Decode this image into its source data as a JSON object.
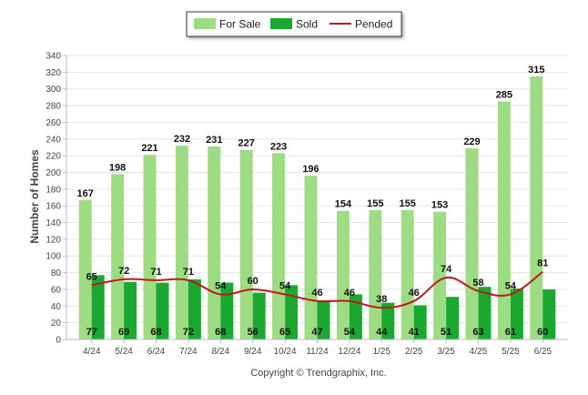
{
  "colors": {
    "for_sale": "#9edc83",
    "sold": "#1aa830",
    "pended": "#c21818",
    "grid": "#e6e6e6",
    "axis": "#bbbbbb"
  },
  "chart_data": {
    "type": "bar",
    "categories": [
      "4/24",
      "5/24",
      "6/24",
      "7/24",
      "8/24",
      "9/24",
      "10/24",
      "11/24",
      "12/24",
      "1/25",
      "2/25",
      "3/25",
      "4/25",
      "5/25",
      "6/25"
    ],
    "series": [
      {
        "name": "For Sale",
        "kind": "bar",
        "values": [
          167,
          198,
          221,
          232,
          231,
          227,
          223,
          196,
          154,
          155,
          155,
          153,
          229,
          285,
          315
        ]
      },
      {
        "name": "Sold",
        "kind": "bar",
        "values": [
          77,
          69,
          68,
          72,
          68,
          56,
          65,
          47,
          54,
          44,
          41,
          51,
          63,
          61,
          60
        ]
      },
      {
        "name": "Pended",
        "kind": "line",
        "values": [
          65,
          72,
          71,
          71,
          54,
          60,
          54,
          46,
          46,
          38,
          46,
          74,
          58,
          54,
          81
        ]
      }
    ],
    "ylabel": "Number of Homes",
    "ylim": [
      0,
      340
    ],
    "yticks": [
      0,
      20,
      40,
      60,
      80,
      100,
      120,
      140,
      160,
      180,
      200,
      220,
      240,
      260,
      280,
      300,
      320,
      340
    ],
    "grid": true,
    "legend": "top-center"
  },
  "footer": "Copyright © Trendgraphix, Inc."
}
